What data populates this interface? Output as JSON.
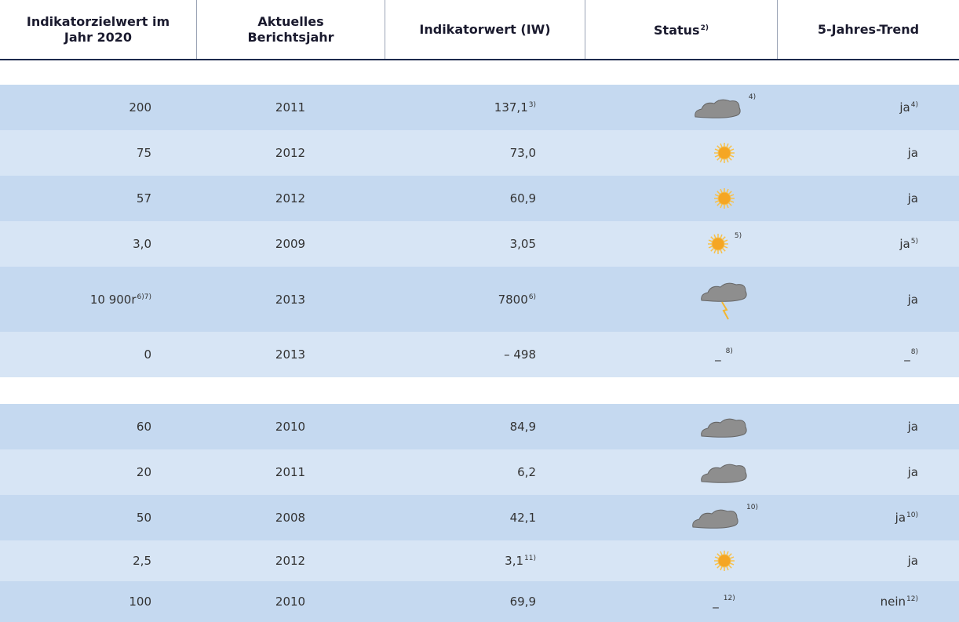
{
  "header": {
    "columns": [
      "Indikatorzielwert im Jahr 2020",
      "Aktuelles Berichtsjahr",
      "Indikatorwert (IW)",
      "Status",
      "5-Jahres-Trend"
    ],
    "status_note": "2)"
  },
  "groups": [
    {
      "rows": [
        {
          "target": "200",
          "year": "2011",
          "value": "137,1",
          "value_note": "3)",
          "status": "cloud",
          "status_note": "4)",
          "trend": "ja",
          "trend_note": "4)"
        },
        {
          "target": "75",
          "year": "2012",
          "value": "73,0",
          "status": "sun",
          "trend": "ja"
        },
        {
          "target": "57",
          "year": "2012",
          "value": "60,9",
          "status": "sun",
          "trend": "ja"
        },
        {
          "target": "3,0",
          "year": "2009",
          "value": "3,05",
          "status": "sun",
          "status_note": "5)",
          "trend": "ja",
          "trend_note": "5)"
        },
        {
          "target": "10 900r",
          "target_note": "6)7)",
          "year": "2013",
          "value": "7800",
          "value_note": "6)",
          "status": "storm",
          "trend": "ja"
        },
        {
          "target": "0",
          "year": "2013",
          "value": "– 498",
          "status_text": "_",
          "status_note": "8)",
          "trend": "_",
          "trend_note": "8)"
        }
      ]
    },
    {
      "rows": [
        {
          "target": "60",
          "year": "2010",
          "value": "84,9",
          "status": "cloud",
          "trend": "ja"
        },
        {
          "target": "20",
          "year": "2011",
          "value": "6,2",
          "status": "cloud",
          "trend": "ja"
        },
        {
          "target": "50",
          "year": "2008",
          "value": "42,1",
          "status": "cloud",
          "status_note": "10)",
          "trend": "ja",
          "trend_note": "10)"
        },
        {
          "target": "2,5",
          "year": "2012",
          "value": "3,1",
          "value_note": "11)",
          "status": "sun",
          "trend": "ja"
        },
        {
          "target": "100",
          "year": "2010",
          "value": "69,9",
          "status_text": "_",
          "status_note": "12)",
          "trend": "nein",
          "trend_note": "12)"
        }
      ]
    }
  ]
}
